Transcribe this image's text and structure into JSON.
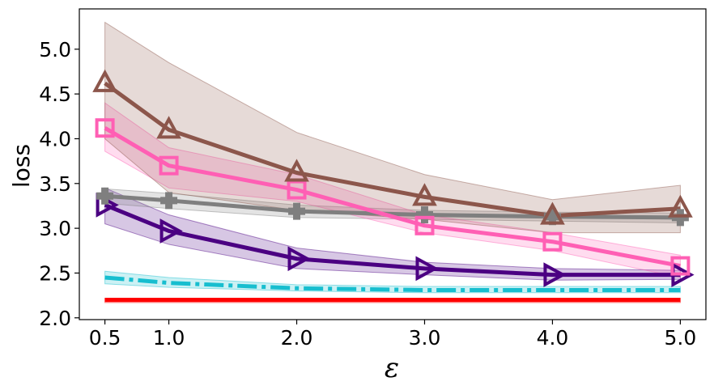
{
  "chart_data": {
    "type": "line",
    "title": "",
    "xlabel": "ε",
    "ylabel": "loss",
    "xlim": [
      0.3,
      5.2
    ],
    "ylim": [
      1.98,
      5.45
    ],
    "xticks": [
      0.5,
      1.0,
      2.0,
      3.0,
      4.0,
      5.0
    ],
    "xtick_labels": [
      "0.5",
      "1.0",
      "2.0",
      "3.0",
      "4.0",
      "5.0"
    ],
    "yticks": [
      2.0,
      2.5,
      3.0,
      3.5,
      4.0,
      4.5,
      5.0
    ],
    "ytick_labels": [
      "2.0",
      "2.5",
      "3.0",
      "3.5",
      "4.0",
      "4.5",
      "5.0"
    ],
    "grid": false,
    "x": [
      0.5,
      1.0,
      2.0,
      3.0,
      4.0,
      5.0
    ],
    "series": [
      {
        "name": "triangle-up",
        "color": "#8c564b",
        "marker": "triangle-up",
        "dash": "solid",
        "values": [
          4.62,
          4.1,
          3.62,
          3.35,
          3.14,
          3.22
        ],
        "lower": [
          4.0,
          3.4,
          3.2,
          3.1,
          2.95,
          2.95
        ],
        "upper": [
          5.3,
          4.85,
          4.07,
          3.6,
          3.32,
          3.48
        ]
      },
      {
        "name": "square",
        "color": "#ff5fb4",
        "marker": "square",
        "dash": "solid",
        "values": [
          4.12,
          3.7,
          3.43,
          3.03,
          2.85,
          2.58
        ],
        "lower": [
          3.86,
          3.45,
          3.3,
          2.95,
          2.75,
          2.45
        ],
        "upper": [
          4.4,
          3.9,
          3.6,
          3.15,
          2.95,
          2.7
        ]
      },
      {
        "name": "plus",
        "color": "#7f7f7f",
        "marker": "plus",
        "dash": "solid",
        "values": [
          3.36,
          3.31,
          3.19,
          3.15,
          3.13,
          3.12
        ],
        "lower": [
          3.28,
          3.22,
          3.12,
          3.1,
          3.08,
          3.06
        ],
        "upper": [
          3.44,
          3.39,
          3.26,
          3.2,
          3.18,
          3.17
        ]
      },
      {
        "name": "triangle-right",
        "color": "#4b0082",
        "marker": "triangle-right",
        "dash": "solid",
        "values": [
          3.26,
          2.97,
          2.66,
          2.55,
          2.48,
          2.48
        ],
        "lower": [
          3.05,
          2.82,
          2.55,
          2.48,
          2.42,
          2.43
        ],
        "upper": [
          3.45,
          3.15,
          2.78,
          2.62,
          2.55,
          2.53
        ]
      },
      {
        "name": "dash-dot",
        "color": "#17becf",
        "marker": "none",
        "dash": "dashdot",
        "values": [
          2.45,
          2.39,
          2.33,
          2.31,
          2.31,
          2.31
        ],
        "lower": [
          2.38,
          2.34,
          2.3,
          2.28,
          2.28,
          2.28
        ],
        "upper": [
          2.52,
          2.45,
          2.37,
          2.35,
          2.35,
          2.35
        ]
      },
      {
        "name": "baseline-red",
        "color": "#ff0000",
        "marker": "none",
        "dash": "solid",
        "values": [
          2.2,
          2.2,
          2.2,
          2.2,
          2.2,
          2.2
        ],
        "lower": [
          2.17,
          2.17,
          2.17,
          2.17,
          2.17,
          2.17
        ],
        "upper": [
          2.22,
          2.22,
          2.22,
          2.22,
          2.22,
          2.22
        ]
      }
    ]
  }
}
